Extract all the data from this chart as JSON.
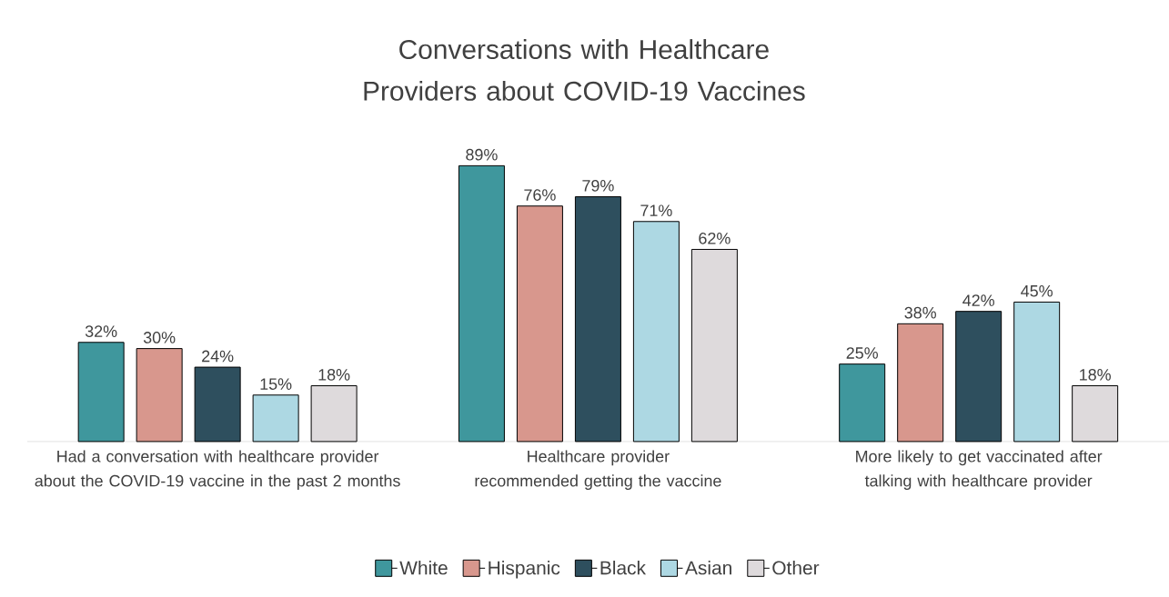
{
  "chart_data": {
    "type": "bar",
    "title": "Conversations with Healthcare Providers about  COVID-19 Vaccines",
    "categories": [
      "Had a conversation with healthcare provider about the COVID-19 vaccine in the past 2 months",
      "Healthcare provider recommended getting the vaccine",
      "More likely to get vaccinated after talking with healthcare provider"
    ],
    "series": [
      {
        "name": "White",
        "color": "#3f979d",
        "values": [
          32,
          89,
          25
        ],
        "value_labels": [
          "32%",
          "89%",
          "25%"
        ]
      },
      {
        "name": "Hispanic",
        "color": "#d8978d",
        "values": [
          30,
          76,
          38
        ],
        "value_labels": [
          "30%",
          "76%",
          "38%"
        ]
      },
      {
        "name": "Black",
        "color": "#2e4f5e",
        "values": [
          24,
          79,
          42
        ],
        "value_labels": [
          "24%",
          "79%",
          "42%"
        ]
      },
      {
        "name": "Asian",
        "color": "#add8e3",
        "values": [
          15,
          71,
          45
        ],
        "value_labels": [
          "15%",
          "71%",
          "45%"
        ]
      },
      {
        "name": "Other",
        "color": "#dedadc",
        "values": [
          18,
          62,
          18
        ],
        "value_labels": [
          "18%",
          "62%",
          "18%"
        ]
      }
    ],
    "legend": "bottom"
  }
}
